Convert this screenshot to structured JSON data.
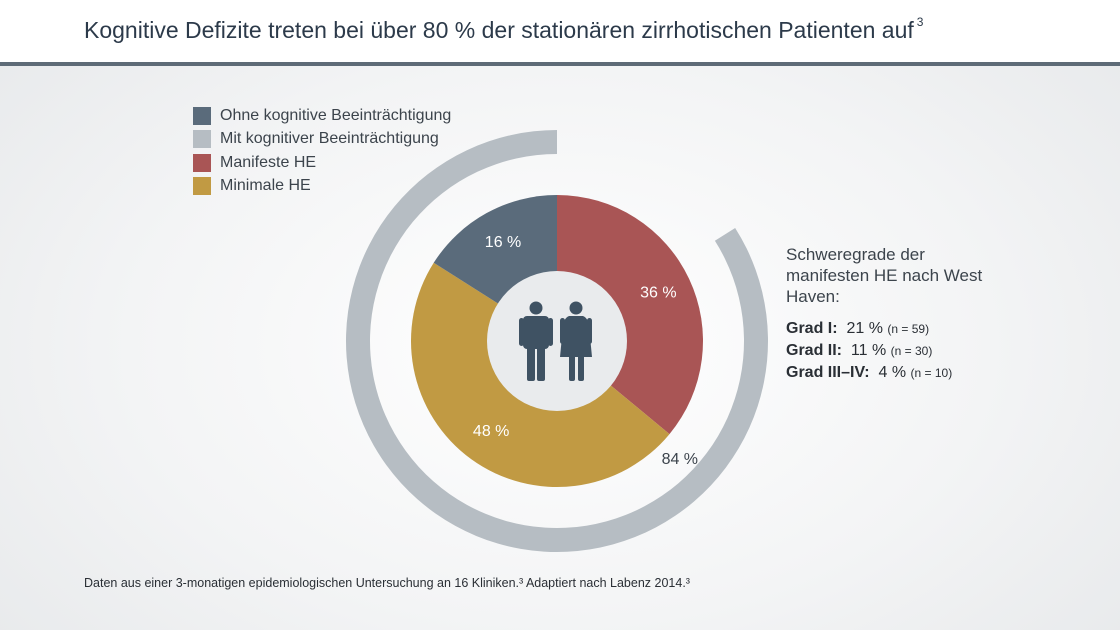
{
  "title": "Kognitive Defizite treten bei über 80 % der stationären zirrhotischen Patienten auf",
  "title_sup": "3",
  "legend": [
    {
      "label": "Ohne kognitive Beeinträchtigung",
      "color": "#5a6b7b"
    },
    {
      "label": "Mit kognitiver Beeinträchtigung",
      "color": "#b6bdc3"
    },
    {
      "label": "Manifeste HE",
      "color": "#a95555"
    },
    {
      "label": "Minimale HE",
      "color": "#c19a43"
    }
  ],
  "chart_data": {
    "type": "pie",
    "inner_ring": [
      {
        "name": "Manifeste HE",
        "value": 36,
        "label": "36 %",
        "color": "#a95555"
      },
      {
        "name": "Minimale HE",
        "value": 48,
        "label": "48 %",
        "color": "#c19a43"
      },
      {
        "name": "Ohne kognitive Beeinträchtigung",
        "value": 16,
        "label": "16 %",
        "color": "#5a6b7b"
      }
    ],
    "outer_ring": [
      {
        "name": "Mit kognitiver Beeinträchtigung",
        "value": 84,
        "label": "84 %",
        "color": "#b6bdc3"
      }
    ],
    "center_icon": "people-icon"
  },
  "severity": {
    "heading": "Schweregrade der manifesten HE nach West Haven:",
    "rows": [
      {
        "grade": "Grad I:",
        "value": "21 %",
        "n": "(n = 59)"
      },
      {
        "grade": "Grad II:",
        "value": "11 %",
        "n": "(n = 30)"
      },
      {
        "grade": "Grad III–IV:",
        "value": "4 %",
        "n": "(n = 10)"
      }
    ]
  },
  "footnote": "Daten aus einer 3-monatigen epidemiologischen Untersuchung an 16 Kliniken.³ Adaptiert nach Labenz 2014.³"
}
